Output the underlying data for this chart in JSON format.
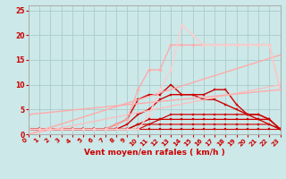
{
  "background_color": "#cce8e8",
  "grid_color": "#aacccc",
  "line_color_axis": "#aaaaaa",
  "xlabel": "Vent moyen/en rafales ( km/h )",
  "xlabel_color": "#cc0000",
  "xlabel_fontsize": 6.5,
  "tick_color": "#cc0000",
  "tick_fontsize": 5.0,
  "xlim": [
    0,
    23
  ],
  "ylim": [
    0,
    26
  ],
  "xticks": [
    0,
    1,
    2,
    3,
    4,
    5,
    6,
    7,
    8,
    9,
    10,
    11,
    12,
    13,
    14,
    15,
    16,
    17,
    18,
    19,
    20,
    21,
    22,
    23
  ],
  "yticks": [
    0,
    5,
    10,
    15,
    20,
    25
  ],
  "series": [
    {
      "x": [
        0,
        1,
        2,
        3,
        4,
        5,
        6,
        7,
        8,
        9,
        10,
        11,
        12,
        13,
        14,
        15,
        16,
        17,
        18,
        19,
        20,
        21,
        22,
        23
      ],
      "y": [
        1,
        1,
        1,
        1,
        1,
        1,
        1,
        1,
        1,
        1,
        1,
        1,
        1,
        1,
        1,
        1,
        1,
        1,
        1,
        1,
        1,
        1,
        1,
        1
      ],
      "color": "#cc0000",
      "lw": 0.8,
      "marker": "s",
      "ms": 1.5
    },
    {
      "x": [
        0,
        1,
        2,
        3,
        4,
        5,
        6,
        7,
        8,
        9,
        10,
        11,
        12,
        13,
        14,
        15,
        16,
        17,
        18,
        19,
        20,
        21,
        22,
        23
      ],
      "y": [
        1,
        1,
        1,
        1,
        1,
        1,
        1,
        1,
        1,
        1,
        1,
        2,
        2,
        2,
        2,
        2,
        2,
        2,
        2,
        2,
        2,
        2,
        2,
        1
      ],
      "color": "#cc0000",
      "lw": 0.8,
      "marker": "s",
      "ms": 1.5
    },
    {
      "x": [
        0,
        1,
        2,
        3,
        4,
        5,
        6,
        7,
        8,
        9,
        10,
        11,
        12,
        13,
        14,
        15,
        16,
        17,
        18,
        19,
        20,
        21,
        22,
        23
      ],
      "y": [
        1,
        1,
        1,
        1,
        1,
        1,
        1,
        1,
        1,
        1,
        2,
        2,
        3,
        3,
        3,
        3,
        3,
        3,
        3,
        3,
        3,
        3,
        2,
        1
      ],
      "color": "#cc0000",
      "lw": 0.9,
      "marker": "s",
      "ms": 1.8
    },
    {
      "x": [
        0,
        1,
        2,
        3,
        4,
        5,
        6,
        7,
        8,
        9,
        10,
        11,
        12,
        13,
        14,
        15,
        16,
        17,
        18,
        19,
        20,
        21,
        22,
        23
      ],
      "y": [
        1,
        1,
        1,
        1,
        1,
        1,
        1,
        1,
        1,
        1,
        2,
        3,
        3,
        4,
        4,
        4,
        4,
        4,
        4,
        4,
        4,
        4,
        3,
        1
      ],
      "color": "#cc0000",
      "lw": 0.9,
      "marker": "s",
      "ms": 1.8
    },
    {
      "x": [
        0,
        1,
        2,
        3,
        4,
        5,
        6,
        7,
        8,
        9,
        10,
        11,
        12,
        13,
        14,
        15,
        16,
        17,
        18,
        19,
        20,
        21,
        22,
        23
      ],
      "y": [
        1,
        1,
        1,
        1,
        1,
        1,
        1,
        1,
        1,
        2,
        4,
        5,
        7,
        8,
        8,
        8,
        7,
        7,
        6,
        5,
        4,
        4,
        3,
        1
      ],
      "color": "#cc0000",
      "lw": 1.0,
      "marker": "s",
      "ms": 2.0
    },
    {
      "x": [
        0,
        1,
        2,
        3,
        4,
        5,
        6,
        7,
        8,
        9,
        10,
        11,
        12,
        13,
        14,
        15,
        16,
        17,
        18,
        19,
        20,
        21,
        22,
        23
      ],
      "y": [
        1,
        1,
        1,
        1,
        1,
        1,
        1,
        1,
        2,
        3,
        7,
        8,
        8,
        10,
        8,
        8,
        8,
        9,
        9,
        6,
        4,
        3,
        3,
        1
      ],
      "color": "#cc0000",
      "lw": 1.0,
      "marker": "s",
      "ms": 2.0
    },
    {
      "x": [
        0,
        23
      ],
      "y": [
        0,
        16
      ],
      "color": "#ffaaaa",
      "lw": 1.0,
      "marker": null,
      "ms": 0
    },
    {
      "x": [
        0,
        23
      ],
      "y": [
        0,
        10
      ],
      "color": "#ffbbbb",
      "lw": 0.9,
      "marker": null,
      "ms": 0
    },
    {
      "x": [
        0,
        23
      ],
      "y": [
        4,
        9
      ],
      "color": "#ffaaaa",
      "lw": 1.0,
      "marker": "D",
      "ms": 2.0
    },
    {
      "x": [
        0,
        1,
        2,
        3,
        4,
        5,
        6,
        7,
        8,
        9,
        10,
        11,
        12,
        13,
        14,
        15,
        16,
        17,
        18,
        19,
        20,
        21,
        22,
        23
      ],
      "y": [
        1,
        1,
        1,
        1,
        1,
        1,
        1,
        1,
        2,
        3,
        9,
        13,
        13,
        18,
        18,
        18,
        18,
        18,
        18,
        18,
        18,
        18,
        18,
        9
      ],
      "color": "#ffaaaa",
      "lw": 1.0,
      "marker": "D",
      "ms": 2.0
    },
    {
      "x": [
        0,
        1,
        2,
        3,
        4,
        5,
        6,
        7,
        8,
        9,
        10,
        11,
        12,
        13,
        14,
        15,
        16,
        17,
        18,
        19,
        20,
        21,
        22,
        23
      ],
      "y": [
        1,
        1,
        1,
        1,
        1,
        1,
        1,
        1,
        1,
        1,
        1,
        4,
        9,
        13,
        22,
        20,
        18,
        18,
        18,
        18,
        18,
        18,
        18,
        9
      ],
      "color": "#ffcccc",
      "lw": 1.0,
      "marker": "D",
      "ms": 1.8
    }
  ]
}
